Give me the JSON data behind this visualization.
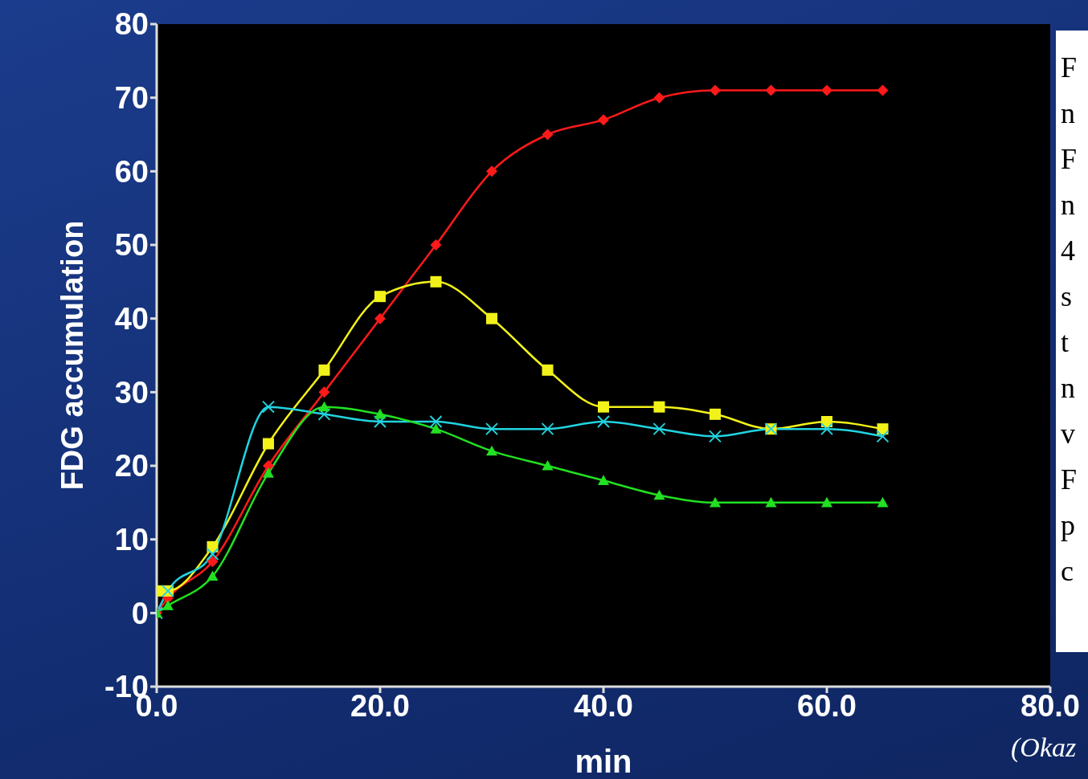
{
  "chart_data": {
    "type": "line",
    "xlabel": "min",
    "ylabel": "FDG accumulation",
    "x": [
      0,
      1,
      5,
      10,
      15,
      20,
      25,
      30,
      35,
      40,
      45,
      50,
      55,
      60,
      65
    ],
    "series": [
      {
        "color": "#ff1a1a",
        "marker": "diamond",
        "values": [
          0,
          2,
          7,
          20,
          30,
          40,
          50,
          60,
          65,
          67,
          70,
          71,
          71,
          71,
          71
        ]
      },
      {
        "color": "#f2f21a",
        "marker": "square",
        "values": [
          3,
          3,
          9,
          23,
          33,
          43,
          45,
          40,
          33,
          28,
          28,
          27,
          25,
          26,
          25
        ]
      },
      {
        "color": "#22d3e0",
        "marker": "cross",
        "values": [
          0,
          3,
          8,
          28,
          27,
          26,
          26,
          25,
          25,
          26,
          25,
          24,
          25,
          25,
          24
        ]
      },
      {
        "color": "#22e022",
        "marker": "triangle",
        "values": [
          0,
          1,
          5,
          19,
          28,
          27,
          25,
          22,
          20,
          18,
          16,
          15,
          15,
          15,
          15
        ]
      }
    ],
    "xlim": [
      0,
      80
    ],
    "xticks": [
      {
        "value": 0,
        "label": "0.0"
      },
      {
        "value": 20,
        "label": "20.0"
      },
      {
        "value": 40,
        "label": "40.0"
      },
      {
        "value": 60,
        "label": "60.0"
      },
      {
        "value": 80,
        "label": "80.0"
      }
    ],
    "ylim": [
      -10,
      80
    ],
    "yticks": [
      -10,
      0,
      10,
      20,
      30,
      40,
      50,
      60,
      70,
      80
    ],
    "grid": false,
    "legend": false,
    "annotations": [
      "F",
      "n",
      "F",
      "n",
      "4",
      "s",
      "t",
      "n",
      "v",
      "F",
      "p",
      "c",
      "(Okaz"
    ]
  }
}
